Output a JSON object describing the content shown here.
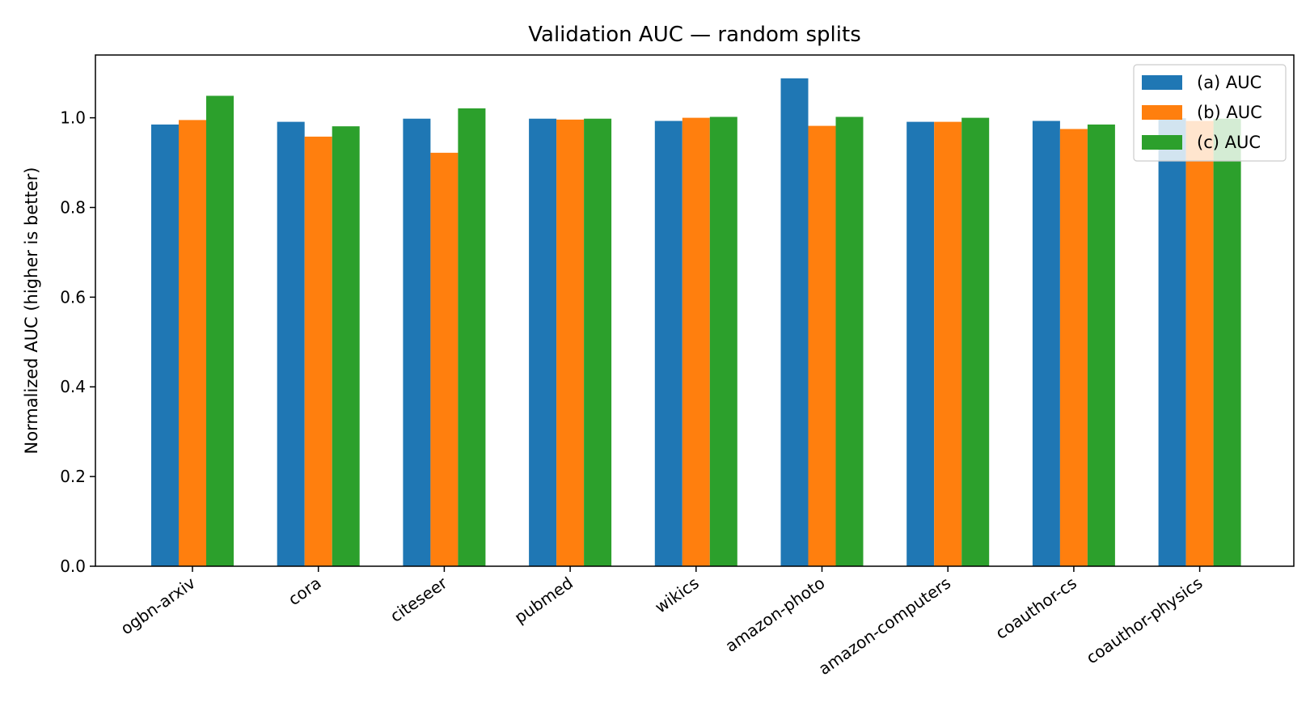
{
  "chart_data": {
    "type": "bar",
    "title": "Validation AUC — random splits",
    "xlabel": "",
    "ylabel": "Normalized AUC (higher is better)",
    "ylim": [
      0,
      1.14
    ],
    "yticks": [
      "0.0",
      "0.2",
      "0.4",
      "0.6",
      "0.8",
      "1.0"
    ],
    "grid": false,
    "legend_position": "top-right",
    "categories": [
      "ogbn-arxiv",
      "cora",
      "citeseer",
      "pubmed",
      "wikics",
      "amazon-photo",
      "amazon-computers",
      "coauthor-cs",
      "coauthor-physics"
    ],
    "series": [
      {
        "name": "(a) AUC",
        "color": "#1f77b4",
        "values": [
          0.985,
          0.991,
          0.998,
          0.998,
          0.993,
          1.088,
          0.991,
          0.993,
          0.999
        ]
      },
      {
        "name": "(b) AUC",
        "color": "#ff7f0e",
        "values": [
          0.995,
          0.958,
          0.922,
          0.996,
          1.0,
          0.982,
          0.991,
          0.975,
          0.993
        ]
      },
      {
        "name": "(c) AUC",
        "color": "#2ca02c",
        "values": [
          1.049,
          0.981,
          1.021,
          0.998,
          1.002,
          1.002,
          1.0,
          0.985,
          0.998
        ]
      }
    ]
  }
}
